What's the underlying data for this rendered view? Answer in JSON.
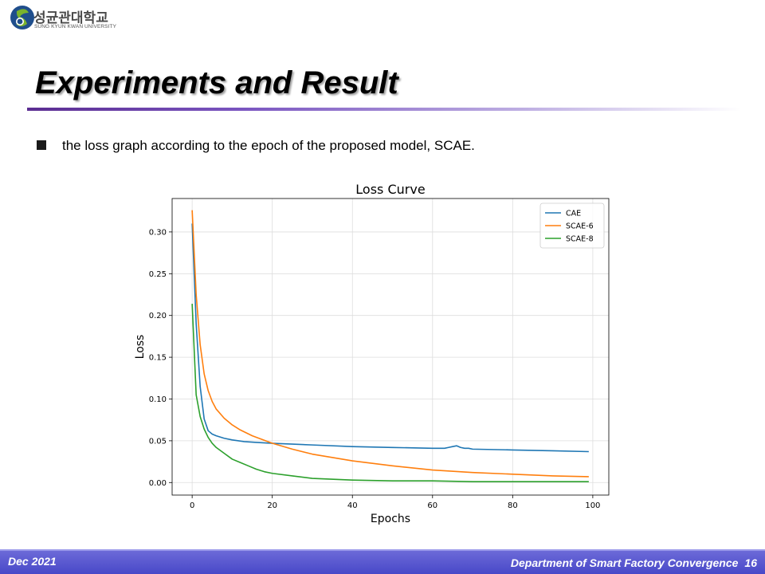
{
  "header": {
    "logo_korean": "성균관대학교",
    "logo_english": "SUNG KYUN KWAN UNIVERSITY",
    "logo_colors": [
      "#7ab32e",
      "#1f4e8c"
    ],
    "logo_icon": "university-emblem-icon"
  },
  "slide": {
    "title": "Experiments and Result",
    "bullet": "the loss graph according to the epoch of the proposed model, SCAE.",
    "bullet_icon": "square-bullet-icon"
  },
  "chart_data": {
    "type": "line",
    "title": "Loss Curve",
    "xlabel": "Epochs",
    "ylabel": "Loss",
    "xlim": [
      -5,
      104
    ],
    "ylim": [
      -0.015,
      0.34
    ],
    "xticks": [
      0,
      20,
      40,
      60,
      80,
      100
    ],
    "yticks": [
      0.0,
      0.05,
      0.1,
      0.15,
      0.2,
      0.25,
      0.3
    ],
    "ytick_labels": [
      "0.00",
      "0.05",
      "0.10",
      "0.15",
      "0.20",
      "0.25",
      "0.30"
    ],
    "grid": true,
    "legend_position": "top-right",
    "series": [
      {
        "name": "CAE",
        "color": "#1f77b4",
        "x": [
          0,
          1,
          2,
          3,
          4,
          5,
          6,
          8,
          10,
          13,
          16,
          20,
          25,
          30,
          40,
          50,
          60,
          63,
          64,
          65,
          66,
          67,
          68,
          69,
          70,
          80,
          90,
          99
        ],
        "y": [
          0.31,
          0.19,
          0.115,
          0.076,
          0.062,
          0.058,
          0.056,
          0.053,
          0.051,
          0.049,
          0.048,
          0.047,
          0.046,
          0.045,
          0.043,
          0.042,
          0.041,
          0.041,
          0.042,
          0.043,
          0.044,
          0.042,
          0.041,
          0.041,
          0.04,
          0.039,
          0.038,
          0.037
        ]
      },
      {
        "name": "SCAE-6",
        "color": "#ff7f0e",
        "x": [
          0,
          1,
          2,
          3,
          4,
          5,
          6,
          8,
          10,
          12,
          15,
          20,
          25,
          30,
          40,
          50,
          60,
          70,
          80,
          90,
          99
        ],
        "y": [
          0.326,
          0.225,
          0.165,
          0.13,
          0.11,
          0.097,
          0.088,
          0.077,
          0.069,
          0.063,
          0.056,
          0.047,
          0.04,
          0.034,
          0.026,
          0.02,
          0.015,
          0.012,
          0.01,
          0.008,
          0.007
        ]
      },
      {
        "name": "SCAE-8",
        "color": "#2ca02c",
        "x": [
          0,
          1,
          2,
          3,
          4,
          5,
          6,
          8,
          10,
          12,
          14,
          16,
          18,
          20,
          25,
          30,
          40,
          50,
          60,
          70,
          80,
          90,
          99
        ],
        "y": [
          0.214,
          0.105,
          0.079,
          0.064,
          0.054,
          0.047,
          0.042,
          0.035,
          0.028,
          0.024,
          0.02,
          0.016,
          0.013,
          0.011,
          0.008,
          0.005,
          0.003,
          0.002,
          0.002,
          0.001,
          0.001,
          0.001,
          0.001
        ]
      }
    ]
  },
  "footer": {
    "date": "Dec 2021",
    "department": "Department of Smart Factory Convergence",
    "page": "16"
  }
}
